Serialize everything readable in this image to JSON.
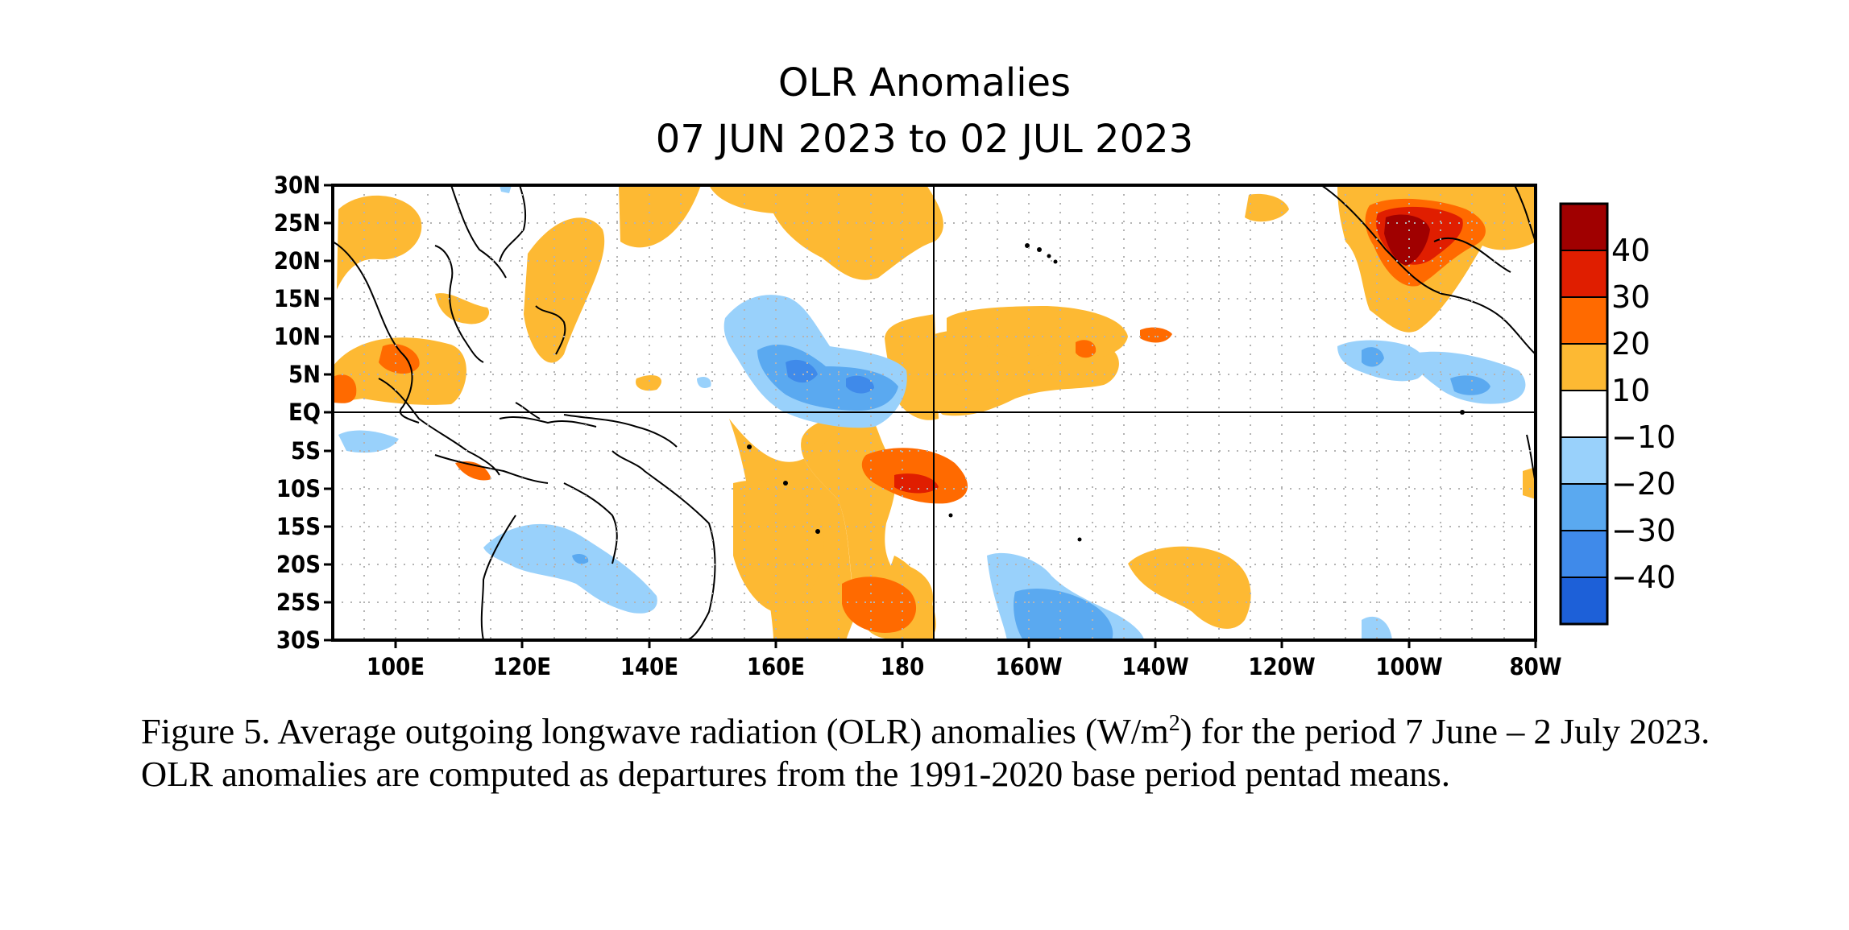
{
  "title": {
    "line1": "OLR Anomalies",
    "line2": "07 JUN 2023 to 02 JUL 2023"
  },
  "map": {
    "lat_labels": [
      "30N",
      "25N",
      "20N",
      "15N",
      "10N",
      "5N",
      "EQ",
      "5S",
      "10S",
      "15S",
      "20S",
      "25S",
      "30S"
    ],
    "lon_labels": [
      "100E",
      "120E",
      "140E",
      "160E",
      "180",
      "160W",
      "140W",
      "120W",
      "100W",
      "80W"
    ],
    "lat_range": [
      -30,
      30
    ],
    "lon_range": [
      90,
      280
    ],
    "reference_lines": [
      "EQ",
      "180"
    ],
    "grid": "dotted every 5 degrees"
  },
  "legend": {
    "labels": [
      "40",
      "30",
      "20",
      "10",
      "−10",
      "−20",
      "−30",
      "−40"
    ],
    "colors": [
      "#a00000",
      "#e01e00",
      "#ff6a00",
      "#fdb933",
      "#ffffff",
      "#99d1fb",
      "#5aa9f0",
      "#3f8aea",
      "#1d60d8"
    ]
  },
  "colors": {
    "pos10": "#fdb933",
    "pos20": "#ff6a00",
    "pos30": "#e01e00",
    "pos40": "#a00000",
    "neg10": "#99d1fb",
    "neg20": "#5aa9f0",
    "neg30": "#3f8aea"
  },
  "caption": {
    "part1": "Figure 5. Average outgoing longwave radiation (OLR) anomalies (W/m",
    "sup": "2",
    "part2": ") for the period 7 June – 2 July 2023.  OLR anomalies are computed as departures from the 1991-2020 base period pentad means."
  }
}
